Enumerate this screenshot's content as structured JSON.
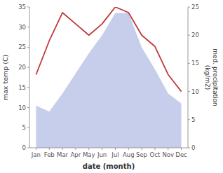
{
  "chart_data": {
    "type": "area",
    "xlabel": "date (month)",
    "ylabel": "max temp (C)",
    "y2label": "med. precipitation\n(kg/m2)",
    "categories": [
      "Jan",
      "Feb",
      "Mar",
      "Apr",
      "May",
      "Jun",
      "Jul",
      "Aug",
      "Sep",
      "Oct",
      "Nov",
      "Dec"
    ],
    "series": [
      {
        "type": "area",
        "color": "#bcc5e8",
        "values": [
          10.5,
          9.0,
          13.5,
          18.5,
          23.5,
          28.0,
          33.5,
          33.5,
          25.0,
          19.5,
          13.5,
          11.0
        ]
      },
      {
        "type": "line",
        "color": "#c0393b",
        "axis": "y2",
        "values": [
          13,
          19,
          24,
          22,
          20,
          22,
          25,
          24,
          20,
          18,
          13,
          10
        ]
      }
    ],
    "ylim": [
      0,
      35
    ],
    "yticks": [
      0,
      5,
      10,
      15,
      20,
      25,
      30,
      35
    ],
    "y2lim": [
      0,
      25
    ],
    "y2ticks": [
      0,
      5,
      10,
      15,
      20,
      25
    ],
    "grid": false
  }
}
